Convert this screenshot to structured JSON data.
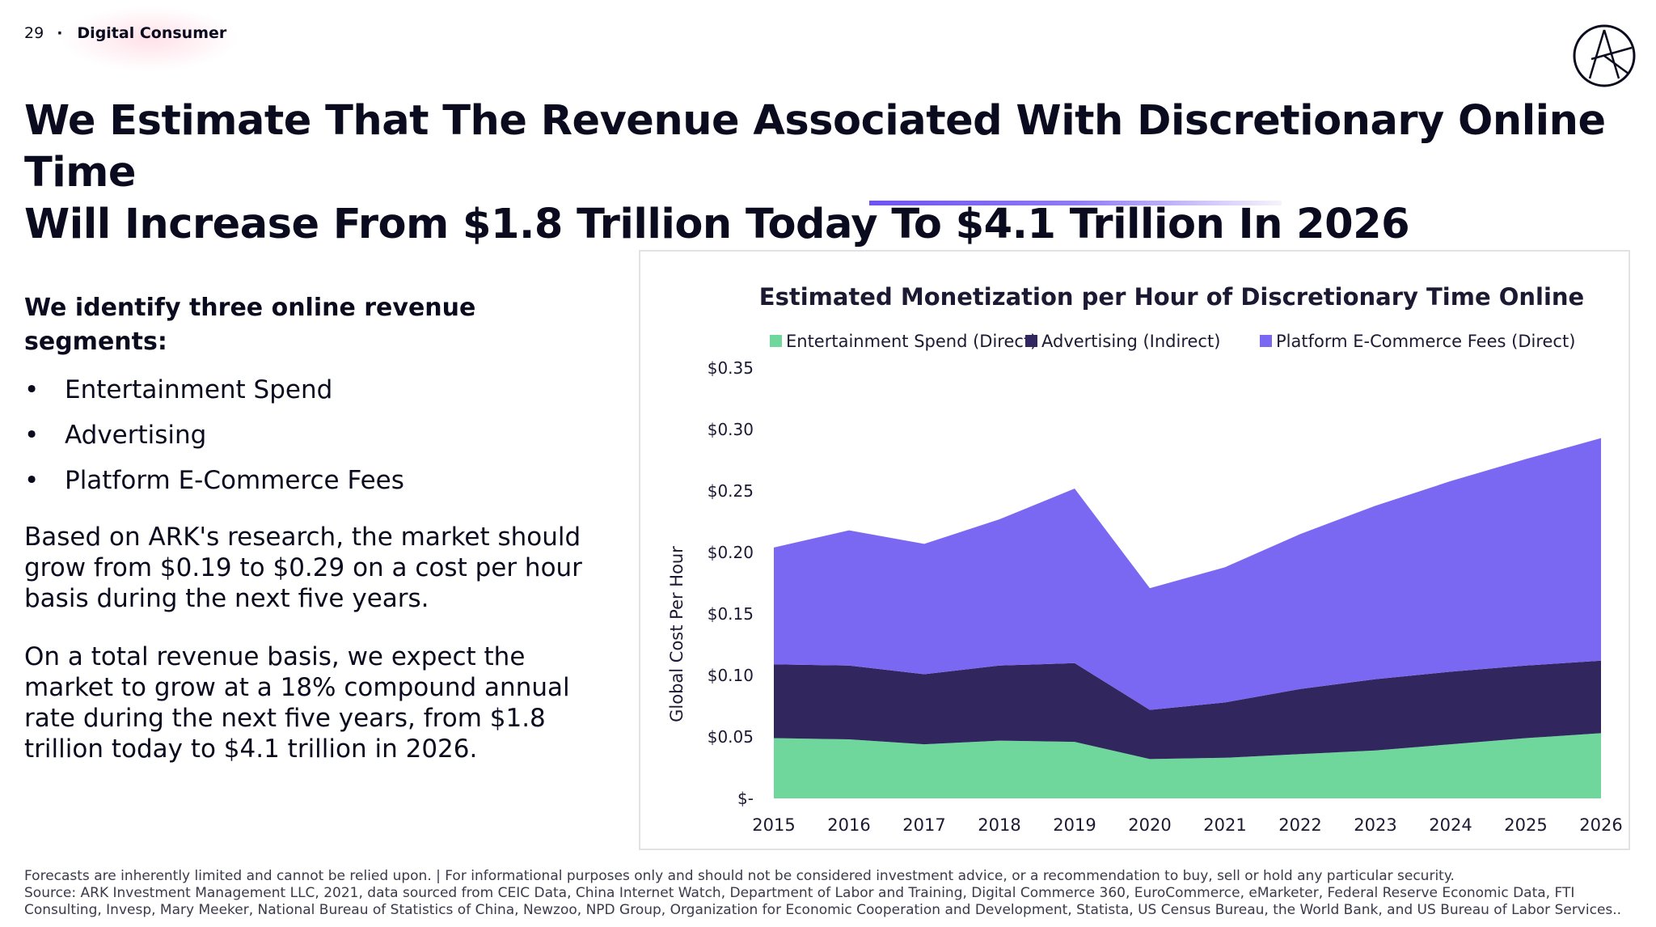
{
  "header": {
    "page_number": "29",
    "separator": "·",
    "section": "Digital Consumer"
  },
  "title": {
    "line1": "We Estimate That The Revenue Associated With Discretionary Online Time",
    "line2_prefix": "Will Increase From $1.8 Trillion Today To ",
    "line2_emphasis": "$4.1 Trillion In 2026"
  },
  "segments": {
    "heading": "We identify three online revenue segments:",
    "bullet_glyph": "•",
    "items": [
      "Entertainment Spend",
      "Advertising",
      "Platform E-Commerce Fees"
    ]
  },
  "paragraphs": {
    "p1": "Based on ARK's research, the market should grow from $0.19 to $0.29 on a cost per hour basis during the next five years.",
    "p2": "On a total revenue basis, we expect the market to grow at a 18% compound annual rate during the next five years, from $1.8 trillion today to $4.1 trillion in 2026."
  },
  "colors": {
    "entertainment": "#6fd69c",
    "advertising": "#31275e",
    "ecommerce": "#7b68f2",
    "accent": "#6f52f2"
  },
  "chart_data": {
    "type": "area",
    "stacked": true,
    "title": "Estimated Monetization per Hour of Discretionary Time Online",
    "ylabel": "Global Cost Per Hour",
    "xlabel": "",
    "legend_position": "top",
    "grid": false,
    "ylim": [
      0,
      0.035
    ],
    "y_ticks": [
      {
        "value": 0,
        "label": "$-"
      },
      {
        "value": 0.005,
        "label": "$0.05"
      },
      {
        "value": 0.01,
        "label": "$0.10"
      },
      {
        "value": 0.015,
        "label": "$0.15"
      },
      {
        "value": 0.02,
        "label": "$0.20"
      },
      {
        "value": 0.025,
        "label": "$0.25"
      },
      {
        "value": 0.03,
        "label": "$0.30"
      },
      {
        "value": 0.035,
        "label": "$0.35"
      }
    ],
    "categories": [
      "2015",
      "2016",
      "2017",
      "2018",
      "2019",
      "2020",
      "2021",
      "2022",
      "2023",
      "2024",
      "2025",
      "2026"
    ],
    "series": [
      {
        "name": "Entertainment Spend (Direct)",
        "color": "#6fd69c",
        "values": [
          0.0049,
          0.0048,
          0.0044,
          0.0047,
          0.0046,
          0.0032,
          0.0033,
          0.0036,
          0.0039,
          0.0044,
          0.0049,
          0.0053
        ]
      },
      {
        "name": "Advertising (Indirect)",
        "color": "#31275e",
        "values": [
          0.006,
          0.006,
          0.0057,
          0.0061,
          0.0064,
          0.004,
          0.0045,
          0.0053,
          0.0058,
          0.0059,
          0.0059,
          0.0059
        ]
      },
      {
        "name": "Platform E-Commerce Fees (Direct)",
        "color": "#7b68f2",
        "values": [
          0.0095,
          0.011,
          0.0106,
          0.0119,
          0.0142,
          0.0099,
          0.011,
          0.0126,
          0.0141,
          0.0155,
          0.0168,
          0.0181
        ]
      }
    ]
  },
  "footer": {
    "line1": "Forecasts are inherently limited and cannot be relied upon. | For informational purposes only and should not be considered investment advice, or a recommendation to buy, sell or hold any particular security.",
    "line2": "Source: ARK Investment Management LLC,  2021, data sourced from CEIC Data, China Internet Watch, Department of Labor and Training, Digital Commerce 360, EuroCommerce, eMarketer, Federal Reserve Economic Data, FTI Consulting, Invesp, Mary Meeker, National Bureau of Statistics of China, Newzoo, NPD Group, Organization for Economic Cooperation and Development, Statista, US Census Bureau, the World Bank, and US Bureau of Labor Services.."
  }
}
